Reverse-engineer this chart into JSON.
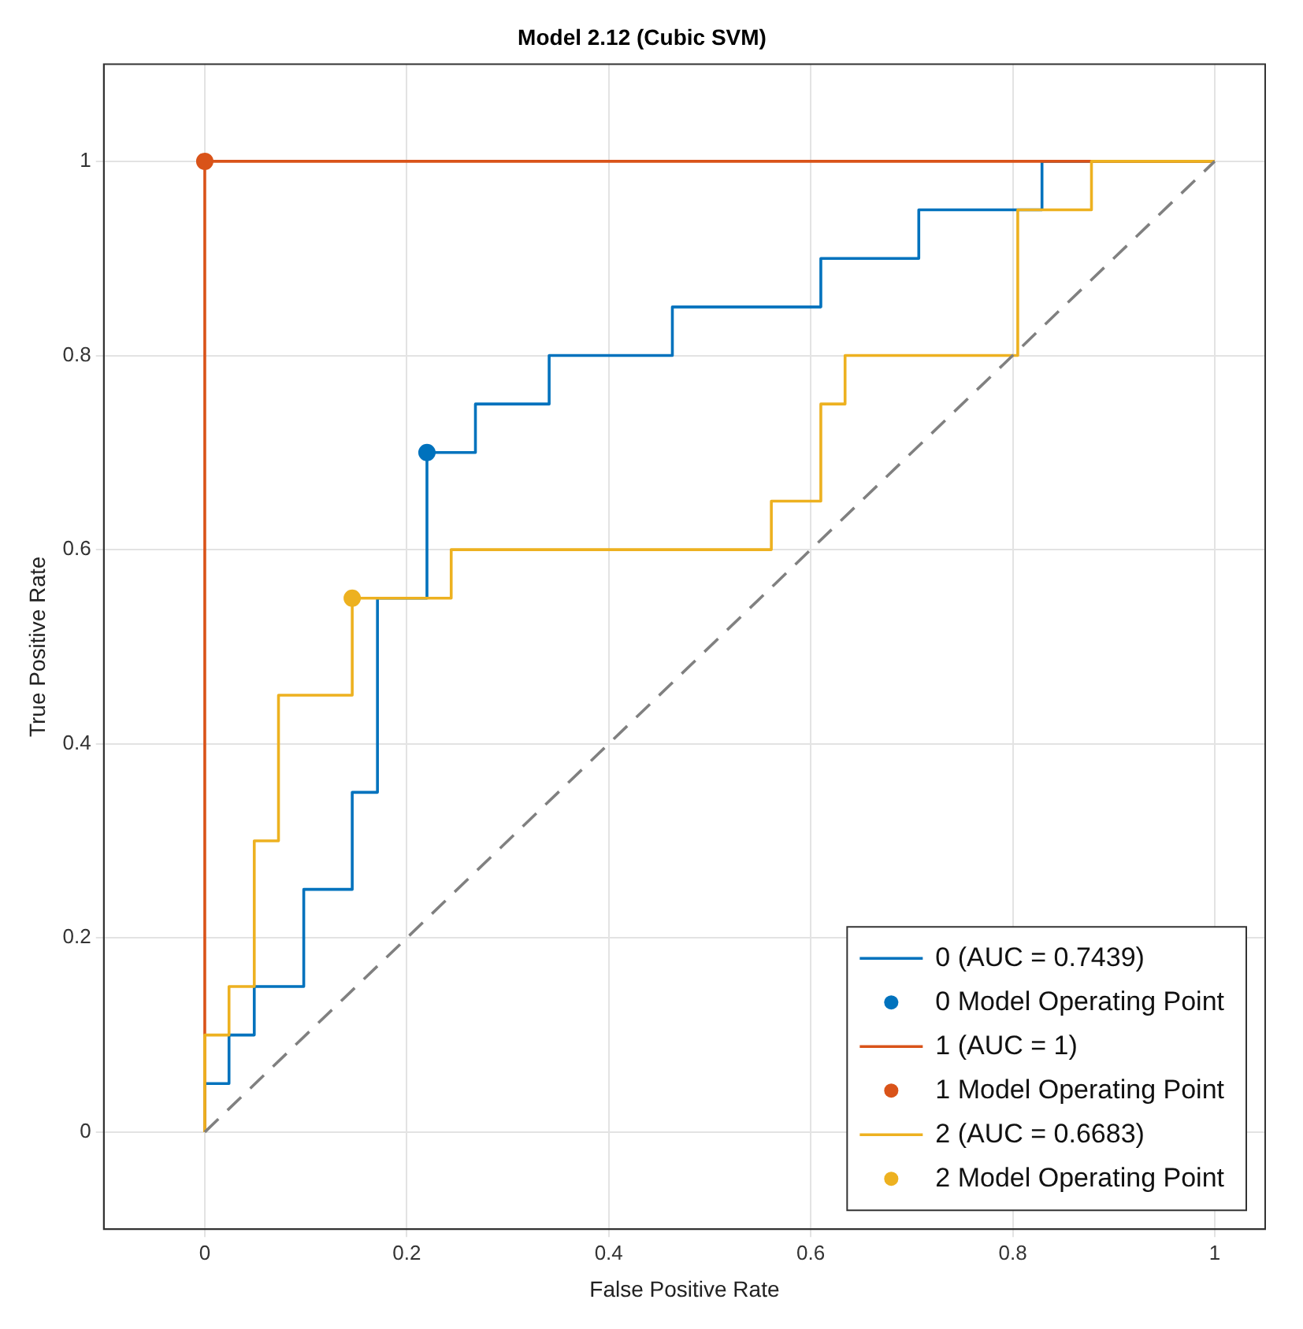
{
  "chart_data": {
    "type": "line",
    "title": "Model 2.12 (Cubic SVM)",
    "xlabel": "False Positive Rate",
    "ylabel": "True Positive Rate",
    "xlim": [
      -0.1,
      1.05
    ],
    "ylim": [
      -0.1,
      1.1
    ],
    "xticks": [
      0,
      0.2,
      0.4,
      0.6,
      0.8,
      1
    ],
    "yticks": [
      0,
      0.2,
      0.4,
      0.6,
      0.8,
      1
    ],
    "grid": true,
    "legend": "bottom right",
    "series": [
      {
        "name": "0 (AUC = 0.7439)",
        "color": "#0072bd",
        "marker": "none",
        "line_style": "solid",
        "x": [
          0,
          0,
          0.024,
          0.024,
          0.049,
          0.049,
          0.098,
          0.098,
          0.146,
          0.146,
          0.171,
          0.171,
          0.22,
          0.22,
          0.268,
          0.268,
          0.341,
          0.341,
          0.463,
          0.463,
          0.61,
          0.61,
          0.707,
          0.707,
          0.829,
          0.829,
          1
        ],
        "values": [
          0,
          0.05,
          0.05,
          0.1,
          0.1,
          0.15,
          0.15,
          0.25,
          0.25,
          0.35,
          0.35,
          0.55,
          0.55,
          0.7,
          0.7,
          0.75,
          0.75,
          0.8,
          0.8,
          0.85,
          0.85,
          0.9,
          0.9,
          0.95,
          0.95,
          1,
          1
        ]
      },
      {
        "name": "0 Model Operating Point",
        "type": "scatter",
        "color": "#0072bd",
        "marker": "circle",
        "x": [
          0.22
        ],
        "values": [
          0.7
        ]
      },
      {
        "name": "1 (AUC = 1)",
        "color": "#d95319",
        "marker": "none",
        "line_style": "solid",
        "x": [
          0,
          0,
          1
        ],
        "values": [
          0,
          1,
          1
        ]
      },
      {
        "name": "1 Model Operating Point",
        "type": "scatter",
        "color": "#d95319",
        "marker": "circle",
        "x": [
          0
        ],
        "values": [
          1
        ]
      },
      {
        "name": "2 (AUC = 0.6683)",
        "color": "#edb120",
        "marker": "none",
        "line_style": "solid",
        "x": [
          0,
          0,
          0.024,
          0.024,
          0.049,
          0.049,
          0.073,
          0.073,
          0.146,
          0.146,
          0.244,
          0.244,
          0.561,
          0.561,
          0.61,
          0.61,
          0.634,
          0.634,
          0.805,
          0.805,
          0.878,
          0.878,
          1
        ],
        "values": [
          0,
          0.1,
          0.1,
          0.15,
          0.15,
          0.3,
          0.3,
          0.45,
          0.45,
          0.55,
          0.55,
          0.6,
          0.6,
          0.65,
          0.65,
          0.75,
          0.75,
          0.8,
          0.8,
          0.95,
          0.95,
          1,
          1
        ]
      },
      {
        "name": "2 Model Operating Point",
        "type": "scatter",
        "color": "#edb120",
        "marker": "circle",
        "x": [
          0.146
        ],
        "values": [
          0.55
        ]
      },
      {
        "color": "#808080",
        "marker": "none",
        "line_style": "dashed",
        "x": [
          0,
          1
        ],
        "values": [
          0,
          1
        ]
      }
    ]
  }
}
